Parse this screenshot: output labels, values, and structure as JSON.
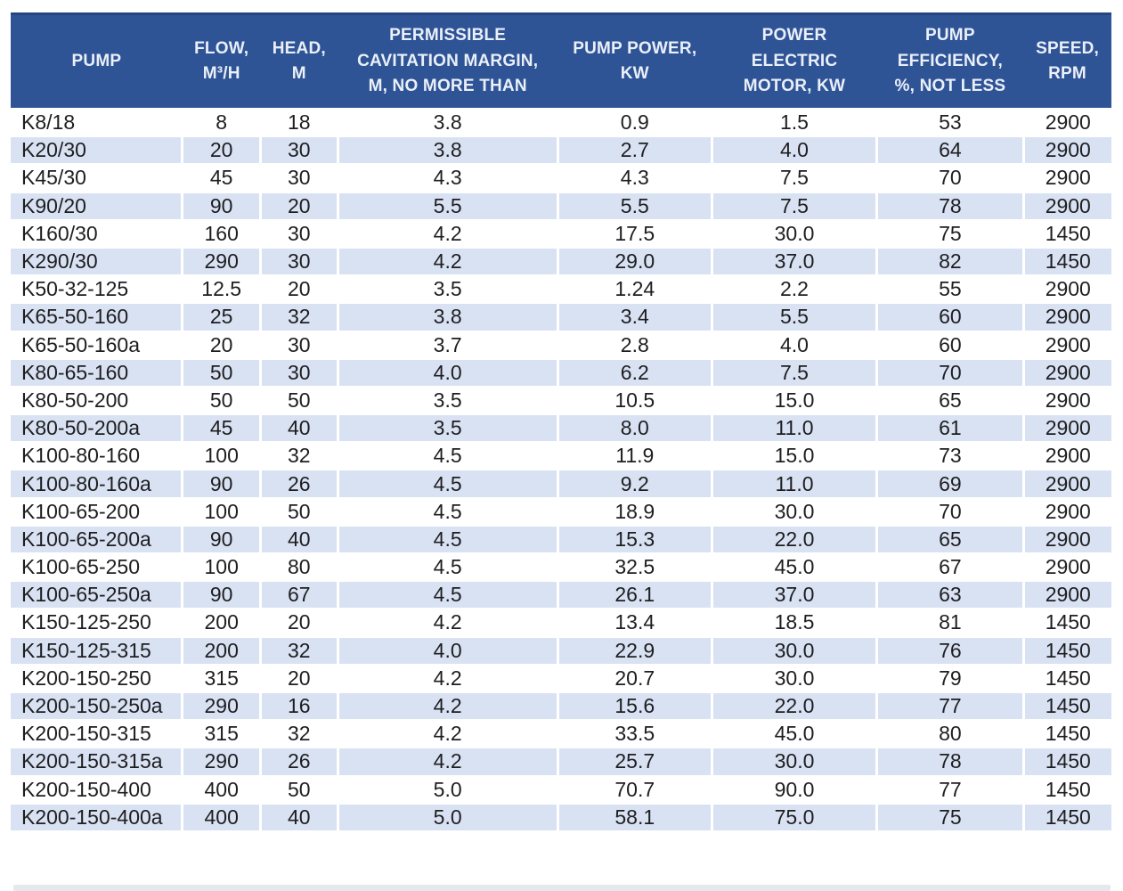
{
  "colors": {
    "header_background": "#2F5496",
    "header_text": "#EAEFF8",
    "stripe_row": "#D9E2F3",
    "body_text": "#1E1E20",
    "gridline": "#FFFFFF"
  },
  "table": {
    "columns": [
      {
        "label": "PUMP"
      },
      {
        "label": "FLOW, M³/H"
      },
      {
        "label": "HEAD, M"
      },
      {
        "label": "PERMISSIBLE CAVITATION MARGIN, M, NO MORE THAN"
      },
      {
        "label": "PUMP POWER, KW"
      },
      {
        "label": "POWER ELECTRIC MOTOR, KW"
      },
      {
        "label": "PUMP EFFICIENCY, %, NOT LESS"
      },
      {
        "label": "SPEED, RPM"
      }
    ],
    "rows": [
      [
        "K8/18",
        "8",
        "18",
        "3.8",
        "0.9",
        "1.5",
        "53",
        "2900"
      ],
      [
        "K20/30",
        "20",
        "30",
        "3.8",
        "2.7",
        "4.0",
        "64",
        "2900"
      ],
      [
        "K45/30",
        "45",
        "30",
        "4.3",
        "4.3",
        "7.5",
        "70",
        "2900"
      ],
      [
        "K90/20",
        "90",
        "20",
        "5.5",
        "5.5",
        "7.5",
        "78",
        "2900"
      ],
      [
        "K160/30",
        "160",
        "30",
        "4.2",
        "17.5",
        "30.0",
        "75",
        "1450"
      ],
      [
        "K290/30",
        "290",
        "30",
        "4.2",
        "29.0",
        "37.0",
        "82",
        "1450"
      ],
      [
        "K50-32-125",
        "12.5",
        "20",
        "3.5",
        "1.24",
        "2.2",
        "55",
        "2900"
      ],
      [
        "K65-50-160",
        "25",
        "32",
        "3.8",
        "3.4",
        "5.5",
        "60",
        "2900"
      ],
      [
        "K65-50-160a",
        "20",
        "30",
        "3.7",
        "2.8",
        "4.0",
        "60",
        "2900"
      ],
      [
        "K80-65-160",
        "50",
        "30",
        "4.0",
        "6.2",
        "7.5",
        "70",
        "2900"
      ],
      [
        "K80-50-200",
        "50",
        "50",
        "3.5",
        "10.5",
        "15.0",
        "65",
        "2900"
      ],
      [
        "K80-50-200a",
        "45",
        "40",
        "3.5",
        "8.0",
        "11.0",
        "61",
        "2900"
      ],
      [
        "K100-80-160",
        "100",
        "32",
        "4.5",
        "11.9",
        "15.0",
        "73",
        "2900"
      ],
      [
        "K100-80-160a",
        "90",
        "26",
        "4.5",
        "9.2",
        "11.0",
        "69",
        "2900"
      ],
      [
        "K100-65-200",
        "100",
        "50",
        "4.5",
        "18.9",
        "30.0",
        "70",
        "2900"
      ],
      [
        "K100-65-200a",
        "90",
        "40",
        "4.5",
        "15.3",
        "22.0",
        "65",
        "2900"
      ],
      [
        "K100-65-250",
        "100",
        "80",
        "4.5",
        "32.5",
        "45.0",
        "67",
        "2900"
      ],
      [
        "K100-65-250a",
        "90",
        "67",
        "4.5",
        "26.1",
        "37.0",
        "63",
        "2900"
      ],
      [
        "K150-125-250",
        "200",
        "20",
        "4.2",
        "13.4",
        "18.5",
        "81",
        "1450"
      ],
      [
        "K150-125-315",
        "200",
        "32",
        "4.0",
        "22.9",
        "30.0",
        "76",
        "1450"
      ],
      [
        "K200-150-250",
        "315",
        "20",
        "4.2",
        "20.7",
        "30.0",
        "79",
        "1450"
      ],
      [
        "K200-150-250a",
        "290",
        "16",
        "4.2",
        "15.6",
        "22.0",
        "77",
        "1450"
      ],
      [
        "K200-150-315",
        "315",
        "32",
        "4.2",
        "33.5",
        "45.0",
        "80",
        "1450"
      ],
      [
        "K200-150-315a",
        "290",
        "26",
        "4.2",
        "25.7",
        "30.0",
        "78",
        "1450"
      ],
      [
        "K200-150-400",
        "400",
        "50",
        "5.0",
        "70.7",
        "90.0",
        "77",
        "1450"
      ],
      [
        "K200-150-400a",
        "400",
        "40",
        "5.0",
        "58.1",
        "75.0",
        "75",
        "1450"
      ]
    ]
  }
}
